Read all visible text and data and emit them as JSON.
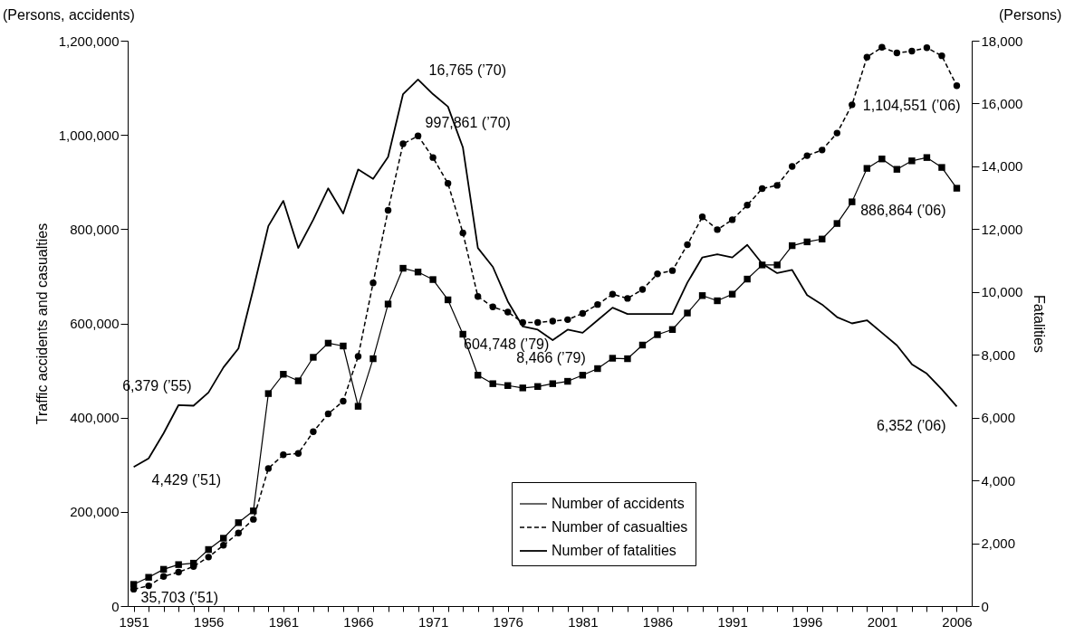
{
  "chart_data": {
    "type": "line",
    "ylabel": "Traffic accidents and casualties",
    "y2label": "Fatalities",
    "annotations": [
      "(Persons, accidents)",
      "(Persons)"
    ],
    "x": [
      1951,
      1952,
      1953,
      1954,
      1955,
      1956,
      1957,
      1958,
      1959,
      1960,
      1961,
      1962,
      1963,
      1964,
      1965,
      1966,
      1967,
      1968,
      1969,
      1970,
      1971,
      1972,
      1973,
      1974,
      1975,
      1976,
      1977,
      1978,
      1979,
      1980,
      1981,
      1982,
      1983,
      1984,
      1985,
      1986,
      1987,
      1988,
      1989,
      1990,
      1991,
      1992,
      1993,
      1994,
      1995,
      1996,
      1997,
      1998,
      1999,
      2000,
      2001,
      2002,
      2003,
      2004,
      2005,
      2006
    ],
    "xlim": [
      1950.6,
      2007
    ],
    "xticks": [
      1951,
      {
        "value": 1952,
        "label": null
      },
      {
        "value": 1953,
        "label": null
      },
      {
        "value": 1954,
        "label": null
      },
      {
        "value": 1955,
        "label": null
      },
      1956,
      {
        "value": 1957,
        "label": null
      },
      {
        "value": 1958,
        "label": null
      },
      {
        "value": 1959,
        "label": null
      },
      {
        "value": 1960,
        "label": null
      },
      1961,
      {
        "value": 1962,
        "label": null
      },
      {
        "value": 1963,
        "label": null
      },
      {
        "value": 1964,
        "label": null
      },
      {
        "value": 1965,
        "label": null
      },
      1966,
      {
        "value": 1967,
        "label": null
      },
      {
        "value": 1968,
        "label": null
      },
      {
        "value": 1969,
        "label": null
      },
      {
        "value": 1970,
        "label": null
      },
      1971,
      {
        "value": 1972,
        "label": null
      },
      {
        "value": 1973,
        "label": null
      },
      {
        "value": 1974,
        "label": null
      },
      {
        "value": 1975,
        "label": null
      },
      1976,
      {
        "value": 1977,
        "label": null
      },
      {
        "value": 1978,
        "label": null
      },
      {
        "value": 1979,
        "label": null
      },
      {
        "value": 1980,
        "label": null
      },
      1981,
      {
        "value": 1982,
        "label": null
      },
      {
        "value": 1983,
        "label": null
      },
      {
        "value": 1984,
        "label": null
      },
      {
        "value": 1985,
        "label": null
      },
      1986,
      {
        "value": 1987,
        "label": null
      },
      {
        "value": 1988,
        "label": null
      },
      {
        "value": 1989,
        "label": null
      },
      {
        "value": 1990,
        "label": null
      },
      1991,
      {
        "value": 1992,
        "label": null
      },
      {
        "value": 1993,
        "label": null
      },
      {
        "value": 1994,
        "label": null
      },
      {
        "value": 1995,
        "label": null
      },
      1996,
      {
        "value": 1997,
        "label": null
      },
      {
        "value": 1998,
        "label": null
      },
      {
        "value": 1999,
        "label": null
      },
      {
        "value": 2000,
        "label": null
      },
      2001,
      {
        "value": 2002,
        "label": null
      },
      {
        "value": 2003,
        "label": null
      },
      {
        "value": 2004,
        "label": null
      },
      {
        "value": 2005,
        "label": null
      },
      2006
    ],
    "ylim": [
      0,
      1200000
    ],
    "yticks": [
      0,
      {
        "value": 200000,
        "label": "200,000"
      },
      {
        "value": 400000,
        "label": "400,000"
      },
      {
        "value": 600000,
        "label": "600,000"
      },
      {
        "value": 800000,
        "label": "800,000"
      },
      {
        "value": 1000000,
        "label": "1,000,000"
      },
      {
        "value": 1200000,
        "label": "1,200,000"
      }
    ],
    "y2lim": [
      0,
      18000
    ],
    "y2ticks": [
      0,
      {
        "value": 2000,
        "label": "2,000"
      },
      {
        "value": 4000,
        "label": "4,000"
      },
      {
        "value": 6000,
        "label": "6,000"
      },
      {
        "value": 8000,
        "label": "8,000"
      },
      {
        "value": 10000,
        "label": "10,000"
      },
      {
        "value": 12000,
        "label": "12,000"
      },
      {
        "value": 14000,
        "label": "14,000"
      },
      {
        "value": 16000,
        "label": "16,000"
      },
      {
        "value": 18000,
        "label": "18,000"
      }
    ],
    "legend": "bottom",
    "grid": false,
    "series": [
      {
        "name": "Number of accidents",
        "color": "#000000",
        "marker": "square",
        "line_style": "solid",
        "values": [
          46000,
          61000,
          78000,
          88000,
          91000,
          120000,
          144000,
          177000,
          202000,
          451000,
          492000,
          478000,
          528000,
          558000,
          552000,
          424000,
          525000,
          641000,
          717000,
          709000,
          693000,
          650000,
          577000,
          490000,
          472000,
          468000,
          463000,
          466000,
          472000,
          477000,
          490000,
          504000,
          526000,
          525000,
          554000,
          576000,
          587000,
          622000,
          659000,
          648000,
          662000,
          694000,
          724000,
          724000,
          765000,
          773000,
          779000,
          812000,
          858000,
          929000,
          949000,
          927000,
          945000,
          952000,
          931000,
          886864
        ],
        "value_labels": [
          null,
          null,
          null,
          null,
          null,
          null,
          null,
          null,
          null,
          null,
          null,
          null,
          null,
          null,
          null,
          null,
          null,
          null,
          null,
          null,
          null,
          null,
          null,
          null,
          null,
          null,
          null,
          null,
          null,
          null,
          null,
          null,
          null,
          null,
          null,
          null,
          null,
          null,
          null,
          null,
          null,
          null,
          null,
          null,
          null,
          null,
          null,
          null,
          null,
          null,
          null,
          null,
          null,
          null,
          null,
          "886,864 (’06)"
        ]
      },
      {
        "name": "Number of casualties",
        "color": "#000000",
        "marker": "circle",
        "line_style": "dashed",
        "values": [
          35703,
          43000,
          63000,
          72000,
          84000,
          104000,
          129000,
          155000,
          184000,
          292000,
          321000,
          324000,
          370000,
          408000,
          435000,
          530000,
          686000,
          840000,
          981000,
          997861,
          952000,
          897000,
          792000,
          657000,
          635000,
          624000,
          602000,
          602000,
          604748,
          608000,
          621000,
          640000,
          662000,
          653000,
          672000,
          705000,
          712000,
          767000,
          826000,
          799000,
          820000,
          851000,
          886000,
          893000,
          933000,
          956000,
          968000,
          1004000,
          1064000,
          1165000,
          1186000,
          1174000,
          1178000,
          1185000,
          1168000,
          1104551
        ],
        "value_labels": [
          "35,703 (’51)",
          null,
          null,
          null,
          null,
          null,
          null,
          null,
          null,
          null,
          null,
          null,
          null,
          null,
          null,
          null,
          null,
          null,
          null,
          "997,861 (’70)",
          null,
          null,
          null,
          null,
          null,
          null,
          null,
          null,
          "604,748 (’79)",
          null,
          null,
          null,
          null,
          null,
          null,
          null,
          null,
          null,
          null,
          null,
          null,
          null,
          null,
          null,
          null,
          null,
          null,
          null,
          null,
          null,
          null,
          null,
          null,
          null,
          null,
          "1,104,551 (’06)"
        ]
      },
      {
        "name": "Number of fatalities",
        "color": "#000000",
        "marker": "none",
        "line_style": "solid",
        "axis": "y2",
        "values": [
          4429,
          4700,
          5500,
          6400,
          6379,
          6800,
          7600,
          8200,
          10100,
          12100,
          12900,
          11400,
          12300,
          13300,
          12500,
          13900,
          13600,
          14300,
          16300,
          16765,
          16300,
          15900,
          14600,
          11400,
          10800,
          9700,
          8900,
          8800,
          8466,
          8800,
          8700,
          9100,
          9500,
          9300,
          9300,
          9300,
          9300,
          10300,
          11100,
          11200,
          11100,
          11500,
          10900,
          10600,
          10700,
          9900,
          9600,
          9200,
          9000,
          9100,
          8700,
          8300,
          7700,
          7400,
          6900,
          6352
        ],
        "value_labels": [
          "4,429 (’51)",
          null,
          null,
          null,
          "6,379 (’55)",
          null,
          null,
          null,
          null,
          null,
          null,
          null,
          null,
          null,
          null,
          null,
          null,
          null,
          null,
          "16,765 (’70)",
          null,
          null,
          null,
          null,
          null,
          null,
          null,
          null,
          "8,466 (’79)",
          null,
          null,
          null,
          null,
          null,
          null,
          null,
          null,
          null,
          null,
          null,
          null,
          null,
          null,
          null,
          null,
          null,
          null,
          null,
          null,
          null,
          null,
          null,
          null,
          null,
          null,
          "6,352 (’06)"
        ]
      }
    ]
  }
}
